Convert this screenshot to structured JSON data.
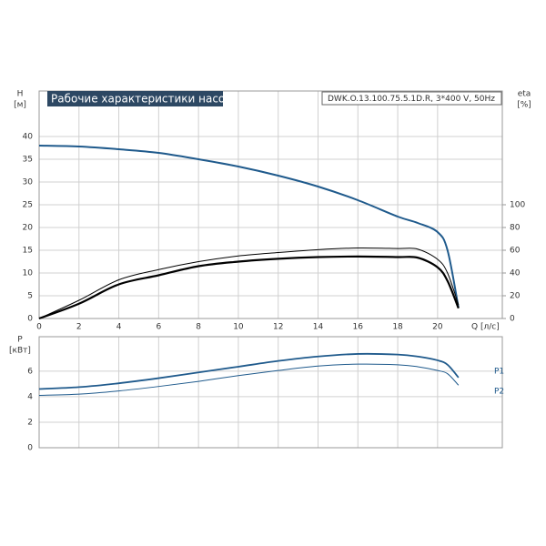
{
  "chart_data": [
    {
      "type": "line",
      "title": "Рабочие характеристики насоса",
      "subtitle": "DWK.O.13.100.75.5.1D.R, 3*400 V, 50Hz",
      "ylabel": "H",
      "yunit": "[м]",
      "y2label": "eta",
      "y2unit": "[%]",
      "xlabel": "Q [л/с]",
      "x": [
        0,
        2,
        4,
        6,
        8,
        10,
        12,
        14,
        16,
        18,
        19,
        20,
        20.5,
        21.05
      ],
      "xlim": [
        0,
        23.25
      ],
      "xticks": [
        0,
        2,
        4,
        6,
        8,
        10,
        12,
        14,
        16,
        18,
        20
      ],
      "ylim": [
        0,
        50
      ],
      "yticks": [
        0,
        5,
        10,
        15,
        20,
        25,
        30,
        35,
        40
      ],
      "y2lim": [
        0,
        200
      ],
      "y2ticks": [
        0,
        20,
        40,
        60,
        80,
        100
      ],
      "grid": true,
      "series": [
        {
          "color": "#1f5a8c",
          "width": 2,
          "values": [
            38,
            37.8,
            37.2,
            36.4,
            35,
            33.4,
            31.4,
            29,
            26,
            22.4,
            21,
            19,
            15,
            2.4
          ]
        },
        {
          "color": "#000000",
          "width": 1,
          "axis": "y2",
          "values": [
            0,
            16,
            34,
            43,
            50,
            55,
            58,
            60.5,
            62,
            61.5,
            61,
            52,
            40,
            12
          ]
        },
        {
          "color": "#000000",
          "width": 2.2,
          "axis": "y2",
          "values": [
            0,
            13,
            30,
            38,
            46,
            50,
            52.5,
            54,
            54.5,
            54,
            53.5,
            45,
            33,
            9
          ]
        }
      ]
    },
    {
      "type": "line",
      "ylabel": "P",
      "yunit": "[кВт]",
      "x": [
        0,
        2,
        4,
        6,
        8,
        10,
        12,
        14,
        16,
        18,
        19,
        20,
        20.5,
        21.05
      ],
      "xlim": [
        0,
        23.25
      ],
      "ylim": [
        0,
        8.7
      ],
      "yticks": [
        0,
        2,
        4,
        6
      ],
      "grid": true,
      "series": [
        {
          "name": "P1",
          "color": "#1f5a8c",
          "width": 1.8,
          "values": [
            4.6,
            4.75,
            5.05,
            5.45,
            5.9,
            6.35,
            6.8,
            7.15,
            7.35,
            7.3,
            7.15,
            6.85,
            6.5,
            5.5
          ]
        },
        {
          "name": "P2",
          "color": "#1f5a8c",
          "width": 1,
          "values": [
            4.1,
            4.2,
            4.45,
            4.8,
            5.2,
            5.65,
            6.05,
            6.4,
            6.55,
            6.5,
            6.35,
            6.05,
            5.8,
            4.9
          ]
        }
      ]
    }
  ]
}
